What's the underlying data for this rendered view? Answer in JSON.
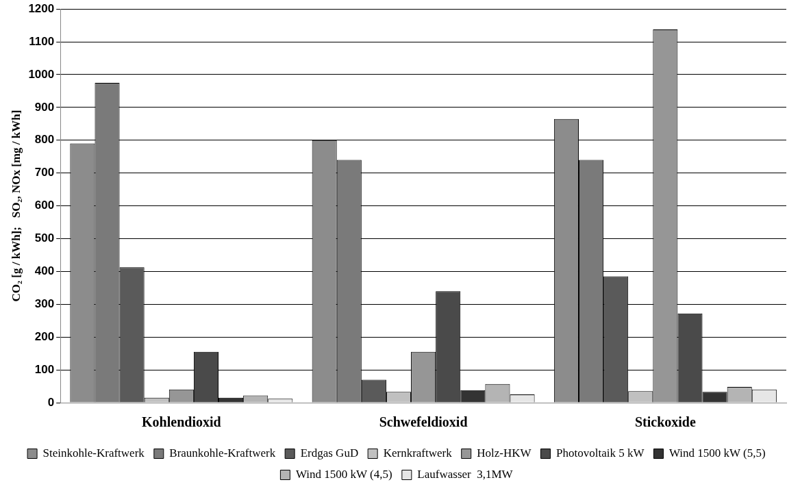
{
  "chart_data": {
    "type": "bar",
    "ylabel": "CO₂ [g / kWh];   SO₂, NOx [mg / kWh]",
    "categories": [
      "Kohlendioxid",
      "Schwefeldioxid",
      "Stickoxide"
    ],
    "series": [
      {
        "name": "Steinkohle-Kraftwerk",
        "color": "#8c8c8c",
        "values": [
          790,
          800,
          865
        ]
      },
      {
        "name": "Braunkohle-Kraftwerk",
        "color": "#7a7a7a",
        "values": [
          975,
          740,
          740
        ]
      },
      {
        "name": "Erdgas GuD",
        "color": "#5a5a5a",
        "values": [
          413,
          70,
          385
        ]
      },
      {
        "name": "Kernkraftwerk",
        "color": "#c0c0c0",
        "values": [
          15,
          33,
          35
        ]
      },
      {
        "name": "Holz-HKW",
        "color": "#969696",
        "values": [
          40,
          155,
          1138
        ]
      },
      {
        "name": "Photovoltaik 5 kW",
        "color": "#4a4a4a",
        "values": [
          155,
          340,
          272
        ]
      },
      {
        "name": "Wind 1500 kW (5,5)",
        "color": "#333333",
        "values": [
          15,
          38,
          33
        ]
      },
      {
        "name": "Wind 1500 kW (4,5)",
        "color": "#b4b4b4",
        "values": [
          22,
          57,
          48
        ]
      },
      {
        "name": "Laufwasser  3,1MW",
        "color": "#e6e6e6",
        "values": [
          12,
          25,
          40
        ]
      }
    ],
    "ylim": [
      0,
      1200
    ],
    "yticks": [
      0,
      100,
      200,
      300,
      400,
      500,
      600,
      700,
      800,
      900,
      1000,
      1100,
      1200
    ],
    "grid": "y",
    "legend": "bottom"
  }
}
